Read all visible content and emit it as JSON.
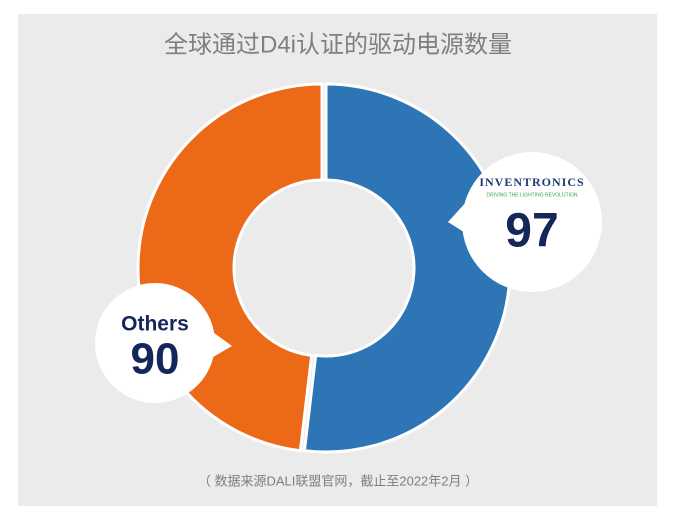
{
  "chart_data": {
    "type": "donut",
    "title": "全球通过D4i认证的驱动电源数量",
    "categories": [
      "INVENTRONICS",
      "Others"
    ],
    "values": [
      97,
      90
    ],
    "colors": [
      "#2e75b6",
      "#ec6a17"
    ],
    "logo_tagline": "DRIVING THE LIGHTING REVOLUTION",
    "footnote": "（ 数据来源DALI联盟官网，截止至2022年2月 ）"
  }
}
